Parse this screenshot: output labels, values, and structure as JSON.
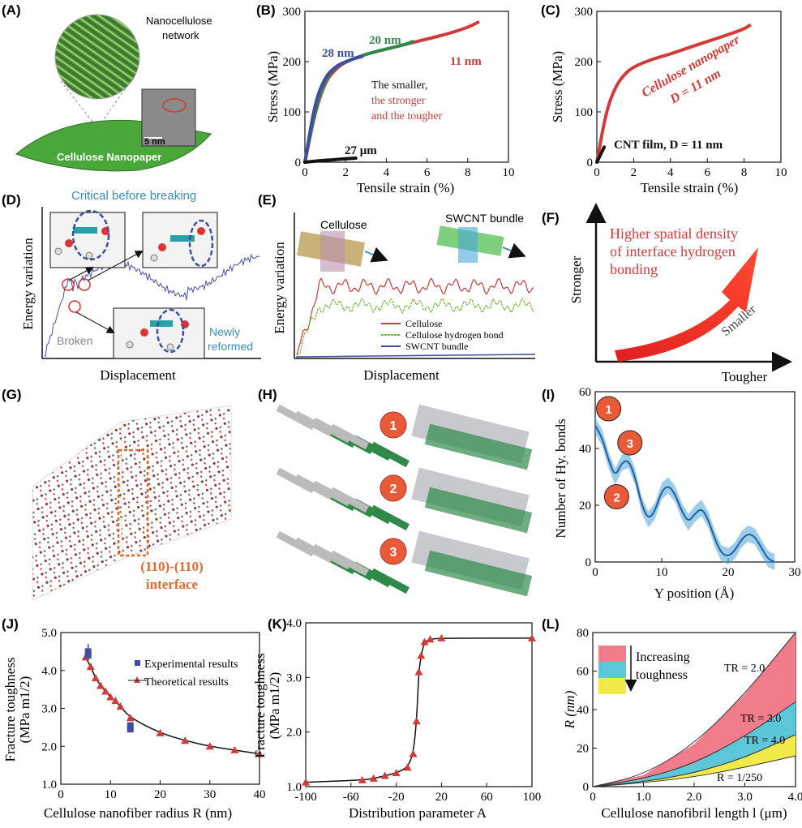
{
  "panels": {
    "A": {
      "label": "(A)",
      "network": [
        "Nanocellulose",
        "network"
      ],
      "paper": "Cellulose Nanopaper",
      "scale": "5 nm"
    },
    "B": {
      "label": "(B)",
      "xlabel": "Tensile strain (%)",
      "ylabel": "Stress (MPa)",
      "xticks": [
        "0",
        "2",
        "4",
        "6",
        "8",
        "10"
      ],
      "yticks": [
        "0",
        "100",
        "200",
        "300"
      ],
      "curve_labels": [
        "28 nm",
        "20 nm",
        "11 nm",
        "27 μm"
      ],
      "note": [
        "The smaller,",
        "the stronger",
        "and the tougher"
      ]
    },
    "C": {
      "label": "(C)",
      "xlabel": "Tensile strain (%)",
      "ylabel": "Stress (MPa)",
      "xticks": [
        "0",
        "2",
        "4",
        "6",
        "8",
        "10"
      ],
      "yticks": [
        "0",
        "100",
        "200",
        "300"
      ],
      "curve_labels": [
        "Cellulose nanopaper",
        "D = 11 nm",
        "CNT film, D = 11 nm"
      ]
    },
    "D": {
      "label": "(D)",
      "xlabel": "Displacement",
      "ylabel": "Energy variation",
      "annotations": [
        "Critical before breaking",
        "Broken",
        "Newly",
        "reformed"
      ]
    },
    "E": {
      "label": "(E)",
      "xlabel": "Displacement",
      "ylabel": "Energy variation",
      "annotations": [
        "Cellulose",
        "SWCNT bundle"
      ],
      "legend": [
        "Cellulose",
        "Cellulose hydrogen bond",
        "SWCNT bundle"
      ]
    },
    "F": {
      "label": "(F)",
      "ylabel": "Stronger",
      "xlabel": "Tougher",
      "text": [
        "Higher spatial density",
        "of interface hydrogen",
        "bonding"
      ],
      "arrow_label": "Smaller"
    },
    "G": {
      "label": "(G)",
      "interface": [
        "(110)-(110)",
        "interface"
      ]
    },
    "H": {
      "label": "(H)",
      "steps": [
        "1",
        "2",
        "3"
      ]
    },
    "I": {
      "label": "(I)",
      "xlabel": "Y position (Å)",
      "ylabel": "Number of Hy. bonds",
      "xticks": [
        "0",
        "10",
        "20",
        "30"
      ],
      "yticks": [
        "0",
        "20",
        "40",
        "60"
      ],
      "markers": [
        "1",
        "3",
        "2"
      ]
    },
    "J": {
      "label": "(J)",
      "xlabel": "Cellulose nanofiber radius R (nm)",
      "ylabel": [
        "Fracture toughness",
        "(MPa m1/2)"
      ],
      "xticks": [
        "0",
        "10",
        "20",
        "30",
        "40"
      ],
      "yticks": [
        "1.0",
        "2.0",
        "3.0",
        "4.0",
        "5.0"
      ],
      "legend": [
        "Experimental results",
        "Theoretical results"
      ]
    },
    "K": {
      "label": "(K)",
      "xlabel": "Distribution parameter A",
      "ylabel": [
        "Fracture toughness",
        "(MPa m1/2)"
      ],
      "xticks": [
        "-100",
        "-60",
        "-20",
        "20",
        "60",
        "100"
      ],
      "yticks": [
        "1.0",
        "2.0",
        "3.0",
        "4.0"
      ]
    },
    "L": {
      "label": "(L)",
      "xlabel": "Cellulose nanofibril length l (μm)",
      "ylabel": "R (nm)",
      "xticks": [
        "0",
        "1.0",
        "2.0",
        "3.0",
        "4.0"
      ],
      "yticks": [
        "0",
        "20",
        "40",
        "60",
        "80"
      ],
      "legend": [
        "Increasing",
        "toughness"
      ],
      "curve_labels": [
        "TR = 2.0",
        "TR = 3.0",
        "TR = 4.0",
        "R = 1/250"
      ]
    }
  },
  "colors": {
    "red": "#d33a3a",
    "blue": "#3e4ea0",
    "green": "#2f8a4a",
    "lightblue": "#4aa6d9",
    "pink": "#f07c8c",
    "cyan": "#5bc7d9",
    "yellow": "#f2e94a",
    "orange": "#e06a2c",
    "teal": "#3a8fb7"
  },
  "chart_data": [
    {
      "panel": "B",
      "type": "line",
      "xlabel": "Tensile strain (%)",
      "ylabel": "Stress (MPa)",
      "xlim": [
        0,
        10
      ],
      "ylim": [
        0,
        300
      ],
      "series": [
        {
          "name": "11 nm",
          "x": [
            0,
            0.5,
            1,
            1.5,
            2,
            3,
            4,
            5,
            6,
            7,
            8,
            8.5
          ],
          "y": [
            0,
            100,
            160,
            185,
            200,
            215,
            225,
            235,
            245,
            255,
            268,
            278
          ]
        },
        {
          "name": "20 nm",
          "x": [
            0,
            0.5,
            1,
            1.5,
            2,
            3,
            4,
            5,
            5.3
          ],
          "y": [
            0,
            105,
            165,
            190,
            200,
            215,
            225,
            235,
            240
          ]
        },
        {
          "name": "28 nm",
          "x": [
            0,
            0.5,
            1,
            1.5,
            2,
            2.5,
            2.8
          ],
          "y": [
            0,
            120,
            170,
            190,
            200,
            207,
            210
          ]
        },
        {
          "name": "27 μm",
          "x": [
            0,
            0.5,
            1,
            1.5,
            2,
            2.5
          ],
          "y": [
            0,
            2,
            4,
            5,
            7,
            8
          ]
        }
      ]
    },
    {
      "panel": "C",
      "type": "line",
      "xlabel": "Tensile strain (%)",
      "ylabel": "Stress (MPa)",
      "xlim": [
        0,
        10
      ],
      "ylim": [
        0,
        300
      ],
      "series": [
        {
          "name": "Cellulose nanopaper D = 11 nm",
          "x": [
            0,
            0.5,
            1,
            1.5,
            2,
            3,
            4,
            5,
            6,
            7,
            8,
            8.3
          ],
          "y": [
            0,
            100,
            150,
            175,
            190,
            205,
            215,
            228,
            240,
            252,
            265,
            272
          ]
        },
        {
          "name": "CNT film, D = 11 nm",
          "x": [
            0,
            0.2,
            0.4
          ],
          "y": [
            0,
            15,
            30
          ]
        }
      ]
    },
    {
      "panel": "I",
      "type": "line",
      "xlabel": "Y position (Å)",
      "ylabel": "Number of Hy. bonds",
      "xlim": [
        0,
        30
      ],
      "ylim": [
        0,
        60
      ],
      "series": [
        {
          "name": "",
          "x": [
            0,
            1,
            2,
            3,
            4,
            5,
            6,
            7,
            8,
            9,
            10,
            11,
            12,
            13,
            14,
            15,
            16,
            17,
            18,
            19,
            20,
            21,
            22,
            23,
            24,
            25,
            26,
            27
          ],
          "y": [
            48,
            44,
            36,
            30,
            35,
            36,
            30,
            20,
            15,
            18,
            25,
            27,
            24,
            18,
            14,
            17,
            19,
            15,
            8,
            3,
            2,
            4,
            8,
            10,
            9,
            5,
            1,
            0
          ]
        }
      ]
    },
    {
      "panel": "J",
      "type": "scatter",
      "xlabel": "Cellulose nanofiber radius R (nm)",
      "ylabel": "Fracture toughness (MPa m1/2)",
      "xlim": [
        0,
        40
      ],
      "ylim": [
        1,
        5
      ],
      "series": [
        {
          "name": "Experimental results",
          "x": [
            5.5,
            5.5,
            14,
            14
          ],
          "y": [
            4.5,
            4.4,
            2.55,
            2.45
          ]
        },
        {
          "name": "Theoretical results",
          "x": [
            5,
            6,
            7,
            8,
            9,
            10,
            11,
            12,
            14,
            20,
            25,
            30,
            35,
            40
          ],
          "y": [
            4.35,
            4.1,
            3.8,
            3.6,
            3.45,
            3.3,
            3.2,
            3.05,
            2.75,
            2.35,
            2.15,
            2.0,
            1.9,
            1.8
          ]
        }
      ]
    },
    {
      "panel": "K",
      "type": "line",
      "xlabel": "Distribution parameter A",
      "ylabel": "Fracture toughness (MPa m1/2)",
      "xlim": [
        -100,
        100
      ],
      "ylim": [
        1,
        4
      ],
      "series": [
        {
          "name": "",
          "x": [
            -100,
            -50,
            -40,
            -30,
            -20,
            -10,
            -5,
            -2,
            0,
            2,
            5,
            10,
            20,
            100
          ],
          "y": [
            1.08,
            1.12,
            1.15,
            1.2,
            1.25,
            1.35,
            1.6,
            2.2,
            3.1,
            3.4,
            3.65,
            3.7,
            3.72,
            3.72
          ]
        }
      ]
    },
    {
      "panel": "L",
      "type": "area",
      "xlabel": "Cellulose nanofibril length l (μm)",
      "ylabel": "R (nm)",
      "xlim": [
        0,
        4
      ],
      "ylim": [
        0,
        80
      ],
      "series": [
        {
          "name": "TR = 2.0",
          "x": [
            0,
            1,
            2,
            3,
            4
          ],
          "y": [
            0,
            6,
            22,
            48,
            80
          ]
        },
        {
          "name": "TR = 3.0",
          "x": [
            0,
            1,
            2,
            3,
            4
          ],
          "y": [
            0,
            4,
            12,
            26,
            44
          ]
        },
        {
          "name": "TR = 4.0",
          "x": [
            0,
            1,
            2,
            3,
            4
          ],
          "y": [
            0,
            2.5,
            7,
            15,
            27
          ]
        },
        {
          "name": "R = 1/250",
          "x": [
            0,
            1,
            2,
            3,
            4
          ],
          "y": [
            0,
            2,
            5,
            10,
            16
          ]
        }
      ]
    }
  ]
}
